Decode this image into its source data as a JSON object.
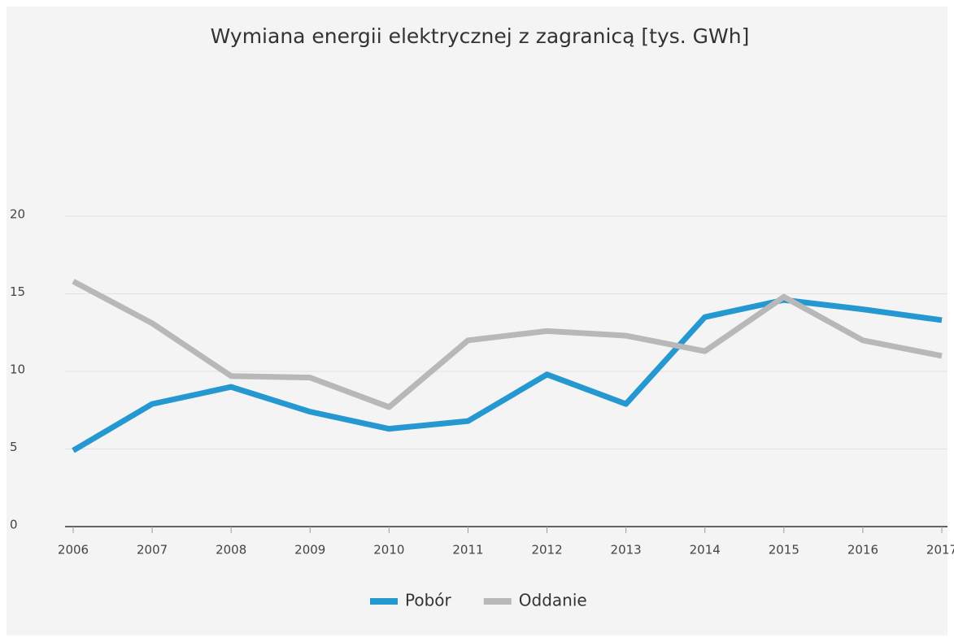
{
  "chart_data": {
    "type": "line",
    "title": "Wymiana energii elektrycznej z zagranicą [tys. GWh]",
    "categories": [
      "2006",
      "2007",
      "2008",
      "2009",
      "2010",
      "2011",
      "2012",
      "2013",
      "2014",
      "2015",
      "2016",
      "2017"
    ],
    "series": [
      {
        "name": "Pobór",
        "color": "#2598d1",
        "values": [
          4.9,
          7.9,
          9.0,
          7.4,
          6.3,
          6.8,
          9.8,
          7.9,
          13.5,
          14.6,
          14.0,
          13.3
        ]
      },
      {
        "name": "Oddanie",
        "color": "#b8b8b8",
        "values": [
          15.8,
          13.1,
          9.7,
          9.6,
          7.7,
          12.0,
          12.6,
          12.3,
          11.3,
          14.8,
          12.0,
          11.0
        ]
      }
    ],
    "ylim": [
      0,
      20
    ],
    "yticks": [
      0,
      5,
      10,
      15,
      20
    ],
    "grid": true,
    "legend": "bottom"
  }
}
